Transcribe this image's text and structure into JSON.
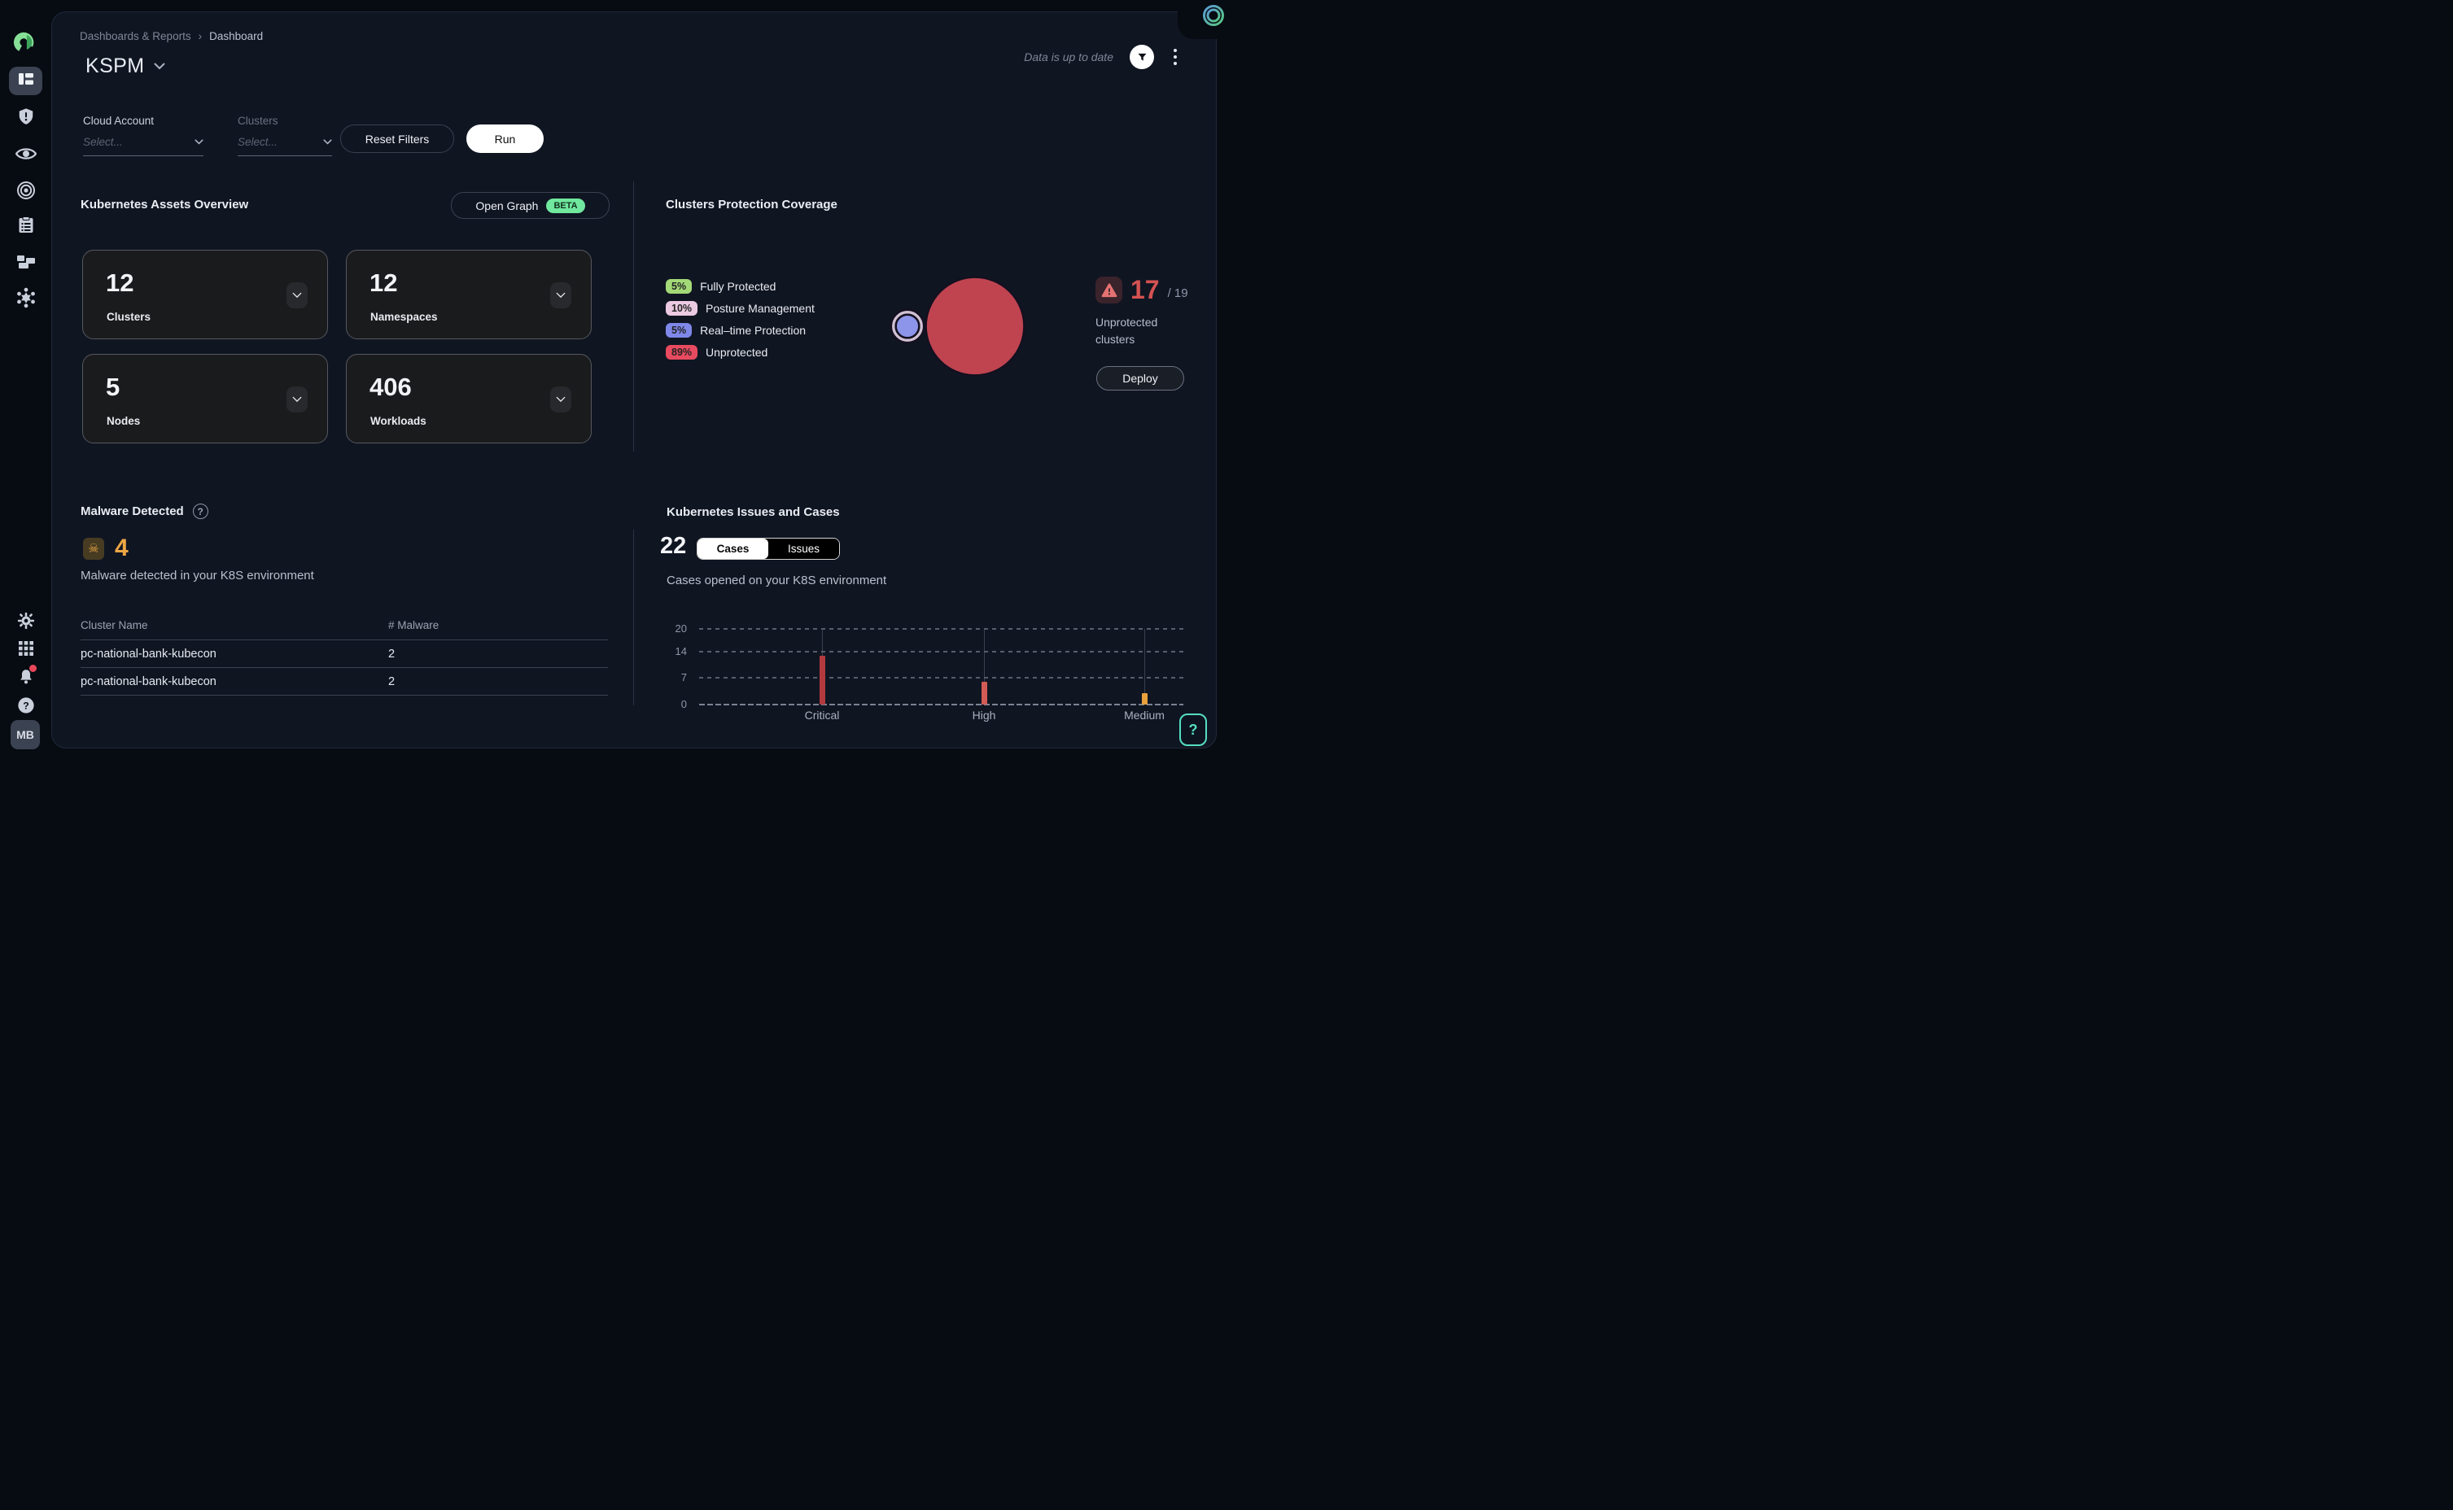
{
  "breadcrumb": {
    "items": [
      "Dashboards & Reports",
      "Dashboard"
    ],
    "separator": "›"
  },
  "header": {
    "title": "KSPM"
  },
  "topbar": {
    "status_text": "Data is up to date"
  },
  "filters": {
    "cloud_account": {
      "label": "Cloud Account",
      "placeholder": "Select..."
    },
    "clusters": {
      "label": "Clusters",
      "placeholder": "Select..."
    },
    "reset_label": "Reset Filters",
    "run_label": "Run"
  },
  "assets": {
    "title": "Kubernetes Assets Overview",
    "open_graph_label": "Open Graph",
    "beta_label": "BETA",
    "cards": [
      {
        "value": "12",
        "label": "Clusters"
      },
      {
        "value": "12",
        "label": "Namespaces"
      },
      {
        "value": "5",
        "label": "Nodes"
      },
      {
        "value": "406",
        "label": "Workloads"
      }
    ]
  },
  "protection": {
    "title": "Clusters Protection Coverage",
    "legend": [
      {
        "pct": "5%",
        "label": "Fully Protected",
        "color": "#a3d977"
      },
      {
        "pct": "10%",
        "label": "Posture Management",
        "color": "#eccae2"
      },
      {
        "pct": "5%",
        "label": "Real–time Protection",
        "color": "#7f88e9"
      },
      {
        "pct": "89%",
        "label": "Unprotected",
        "color": "#e84a5f"
      }
    ],
    "unprotected": {
      "count": "17",
      "total": "/ 19",
      "caption": "Unprotected clusters",
      "deploy_label": "Deploy"
    },
    "chart_data": {
      "type": "bubble",
      "note": "bubble area proportional to pct; r = 6.4*sqrt(pct) px",
      "series": [
        {
          "name": "Unprotected",
          "pct": 89,
          "color": "#bf4450",
          "cx": 134,
          "cy": 76
        },
        {
          "name": "Posture Management",
          "pct": 10,
          "color": "#cfc0d2",
          "cx": 51,
          "cy": 76
        },
        {
          "name": "Fully Protected",
          "pct": 5,
          "color": "#9ed36a",
          "cx": 51,
          "cy": 76
        },
        {
          "name": "Real-time Protection",
          "pct": 5,
          "color": "#8d95ea",
          "cx": 51,
          "cy": 76
        }
      ]
    }
  },
  "malware": {
    "title": "Malware Detected",
    "count": "4",
    "subtitle": "Malware detected in your K8S environment",
    "table": {
      "headers": [
        "Cluster Name",
        "# Malware"
      ],
      "rows": [
        [
          "pc-national-bank-kubecon",
          "2"
        ],
        [
          "pc-national-bank-kubecon",
          "2"
        ]
      ]
    }
  },
  "issues": {
    "title": "Kubernetes Issues and Cases",
    "count": "22",
    "tabs": [
      {
        "label": "Cases",
        "active": true
      },
      {
        "label": "Issues",
        "active": false
      }
    ],
    "subtitle": "Cases opened on your K8S environment",
    "chart_data": {
      "type": "bar",
      "categories": [
        "Critical",
        "High",
        "Medium"
      ],
      "values": [
        13,
        6,
        3
      ],
      "colors": [
        "#b23a3e",
        "#d25b55",
        "#e9a13b"
      ],
      "ylim": [
        0,
        20
      ],
      "yticks": [
        0,
        7,
        14,
        20
      ],
      "grid": "dashed-horizontal"
    }
  },
  "sidebar": {
    "avatar": "MB"
  },
  "glyphs": {
    "question": "?"
  }
}
